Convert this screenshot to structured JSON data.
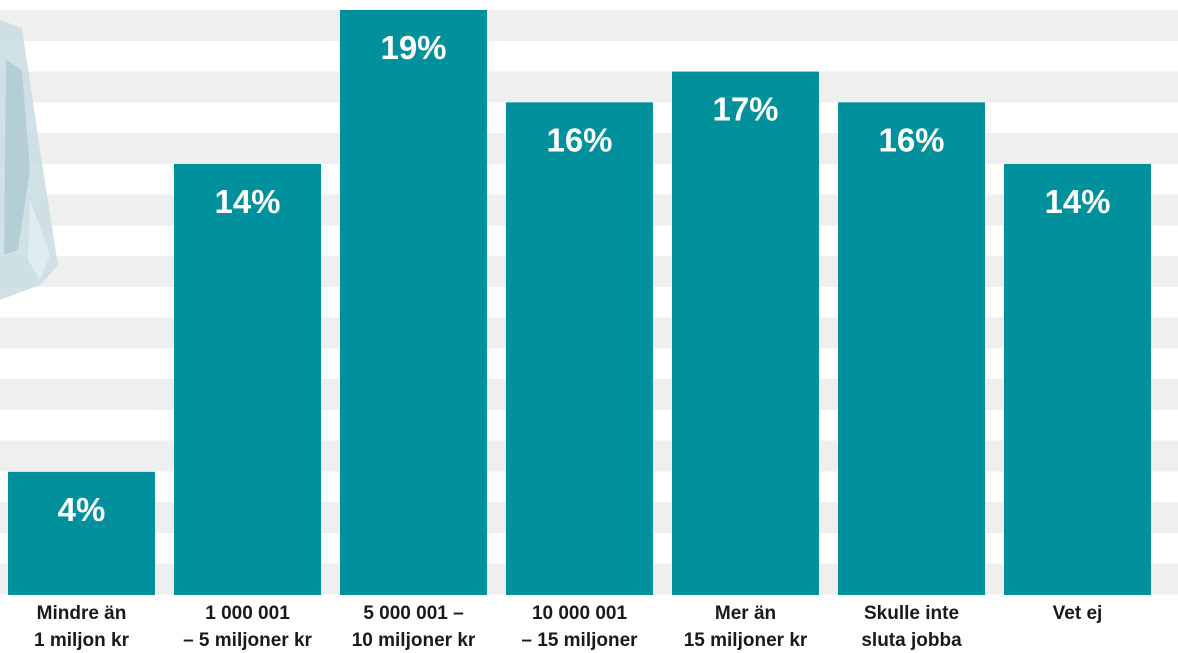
{
  "chart_data": {
    "type": "bar",
    "categories": [
      [
        "Mindre än",
        "1 miljon kr"
      ],
      [
        "1 000 001",
        "– 5 miljoner kr"
      ],
      [
        "5 000 001 –",
        "10 miljoner kr"
      ],
      [
        "10 000 001",
        "– 15 miljoner"
      ],
      [
        "Mer än",
        "15 miljoner kr"
      ],
      [
        "Skulle inte",
        "sluta jobba"
      ],
      [
        "Vet ej"
      ]
    ],
    "values": [
      4,
      14,
      19,
      16,
      17,
      16,
      14
    ],
    "value_labels": [
      "4%",
      "14%",
      "19%",
      "16%",
      "17%",
      "16%",
      "14%"
    ],
    "title": "",
    "xlabel": "",
    "ylabel": "",
    "ylim": [
      0,
      19
    ],
    "grid": true,
    "colors": {
      "bar": "#00919d",
      "stripe": "#efefef",
      "background": "#ffffff",
      "label_text": "#1a1a1a",
      "value_text": "#ffffff",
      "decor": "#c9dde2"
    }
  }
}
